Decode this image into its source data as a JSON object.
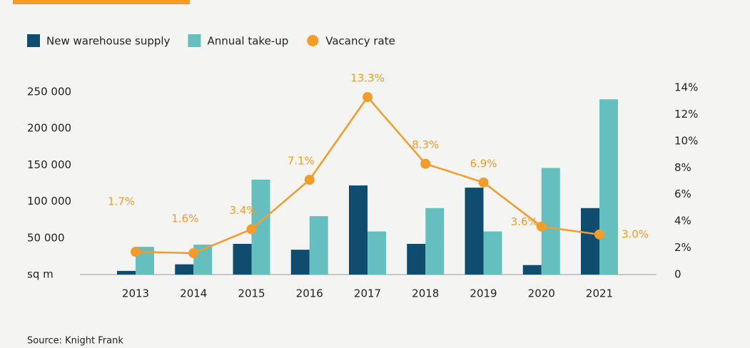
{
  "chart_data": {
    "type": "bar_line",
    "categories": [
      "2013",
      "2014",
      "2015",
      "2016",
      "2017",
      "2018",
      "2019",
      "2020",
      "2021"
    ],
    "series": [
      {
        "name": "New warehouse supply",
        "type": "bar",
        "color": "#0f4c6e",
        "values": [
          5000,
          14000,
          42000,
          34000,
          122000,
          42000,
          119000,
          13000,
          91000
        ]
      },
      {
        "name": "Annual take-up",
        "type": "bar",
        "color": "#66bfbf",
        "values": [
          38000,
          41000,
          130000,
          80000,
          59000,
          91000,
          59000,
          146000,
          240000
        ]
      },
      {
        "name": "Vacancy rate",
        "type": "line",
        "axis": "y2",
        "color": "#f39c2a",
        "values": [
          1.7,
          1.6,
          3.4,
          7.1,
          13.3,
          8.3,
          6.9,
          3.6,
          3.0
        ],
        "value_labels": [
          "1.7%",
          "1.6%",
          "3.4%",
          "7.1%",
          "13.3%",
          "8.3%",
          "6.9%",
          "3.6%",
          "3.0%"
        ]
      }
    ],
    "ylim": [
      0,
      250000
    ],
    "yticks": [
      {
        "value": 0,
        "label": "sq m"
      },
      {
        "value": 50000,
        "label": "50 000"
      },
      {
        "value": 100000,
        "label": "100 000"
      },
      {
        "value": 150000,
        "label": "150 000"
      },
      {
        "value": 200000,
        "label": "200 000"
      },
      {
        "value": 250000,
        "label": "250 000"
      }
    ],
    "y2lim": [
      0,
      14
    ],
    "y2ticks": [
      0,
      {
        "value": 2,
        "label": "2%"
      },
      {
        "value": 4,
        "label": "4%"
      },
      {
        "value": 6,
        "label": "6%"
      },
      {
        "value": 8,
        "label": "8%"
      },
      {
        "value": 10,
        "label": "10%"
      },
      {
        "value": 12,
        "label": "12%"
      },
      {
        "value": 14,
        "label": "14%"
      }
    ],
    "source": "Source: Knight Frank"
  }
}
